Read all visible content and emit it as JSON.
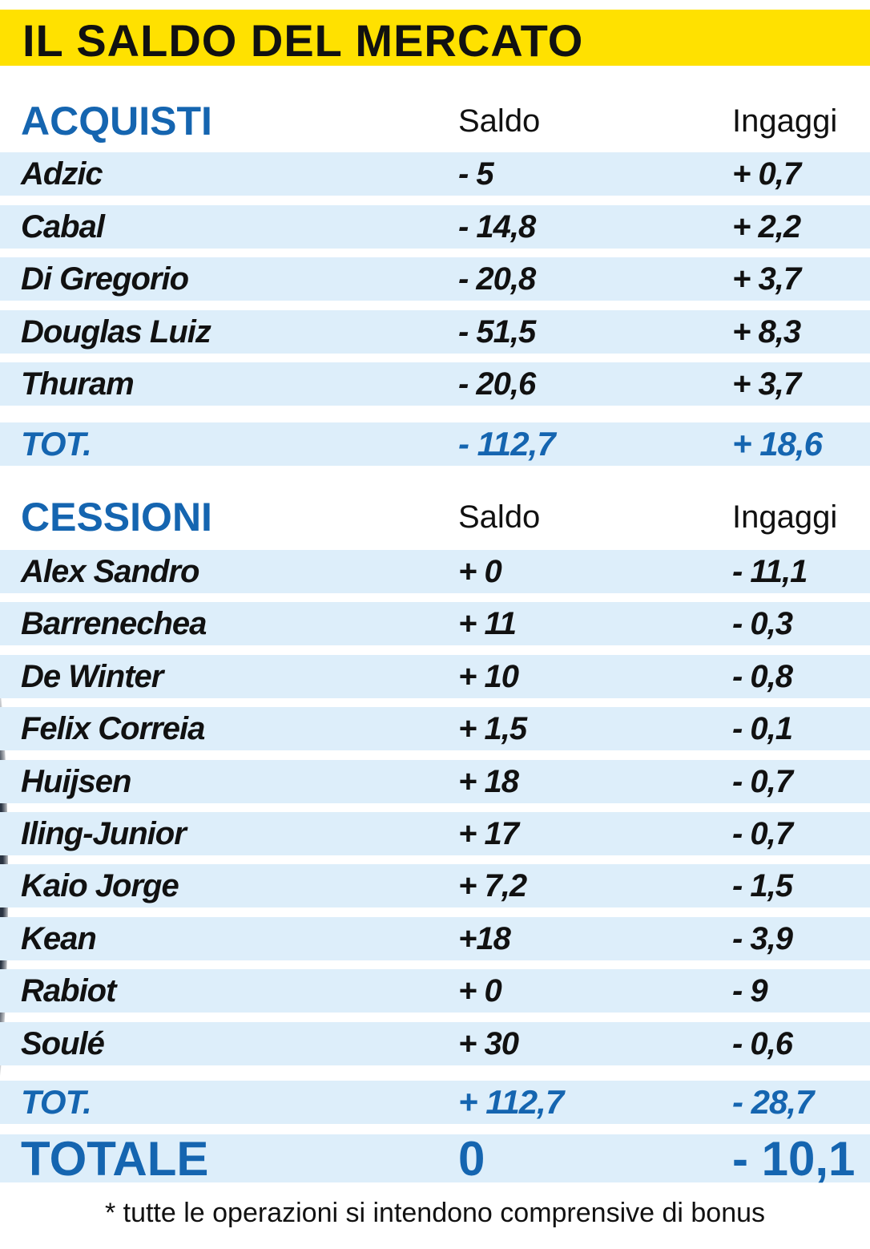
{
  "title": "IL SALDO DEL MERCATO",
  "acquisti": {
    "heading": "ACQUISTI",
    "col_saldo": "Saldo",
    "col_ingaggi": "Ingaggi",
    "rows": [
      {
        "name": "Adzic",
        "saldo": "- 5",
        "ingaggi": "+ 0,7"
      },
      {
        "name": "Cabal",
        "saldo": "- 14,8",
        "ingaggi": "+ 2,2"
      },
      {
        "name": "Di Gregorio",
        "saldo": "- 20,8",
        "ingaggi": "+ 3,7"
      },
      {
        "name": "Douglas Luiz",
        "saldo": "- 51,5",
        "ingaggi": "+ 8,3"
      },
      {
        "name": "Thuram",
        "saldo": "- 20,6",
        "ingaggi": "+ 3,7"
      }
    ],
    "total": {
      "label": "TOT.",
      "saldo": "- 112,7",
      "ingaggi": "+ 18,6"
    }
  },
  "cessioni": {
    "heading": "CESSIONI",
    "col_saldo": "Saldo",
    "col_ingaggi": "Ingaggi",
    "rows": [
      {
        "name": "Alex Sandro",
        "saldo": "+ 0",
        "ingaggi": "- 11,1"
      },
      {
        "name": "Barrenechea",
        "saldo": "+ 11",
        "ingaggi": "- 0,3"
      },
      {
        "name": "De Winter",
        "saldo": "+ 10",
        "ingaggi": "- 0,8"
      },
      {
        "name": "Felix Correia",
        "saldo": "+ 1,5",
        "ingaggi": "- 0,1"
      },
      {
        "name": "Huijsen",
        "saldo": "+ 18",
        "ingaggi": "- 0,7"
      },
      {
        "name": "Iling-Junior",
        "saldo": "+ 17",
        "ingaggi": "- 0,7"
      },
      {
        "name": "Kaio Jorge",
        "saldo": "+ 7,2",
        "ingaggi": "- 1,5"
      },
      {
        "name": "Kean",
        "saldo": "+18",
        "ingaggi": "- 3,9"
      },
      {
        "name": "Rabiot",
        "saldo": "+ 0",
        "ingaggi": "- 9"
      },
      {
        "name": "Soulé",
        "saldo": "+ 30",
        "ingaggi": "- 0,6"
      }
    ],
    "total": {
      "label": "TOT.",
      "saldo": "+ 112,7",
      "ingaggi": "- 28,7"
    }
  },
  "grand_total": {
    "label": "TOTALE",
    "saldo": "0",
    "ingaggi": "- 10,1"
  },
  "footnote": "* tutte le operazioni si intendono comprensive di bonus",
  "colors": {
    "title_bar": "#ffe100",
    "accent_blue": "#1565b0",
    "band": "#ddeefa"
  }
}
